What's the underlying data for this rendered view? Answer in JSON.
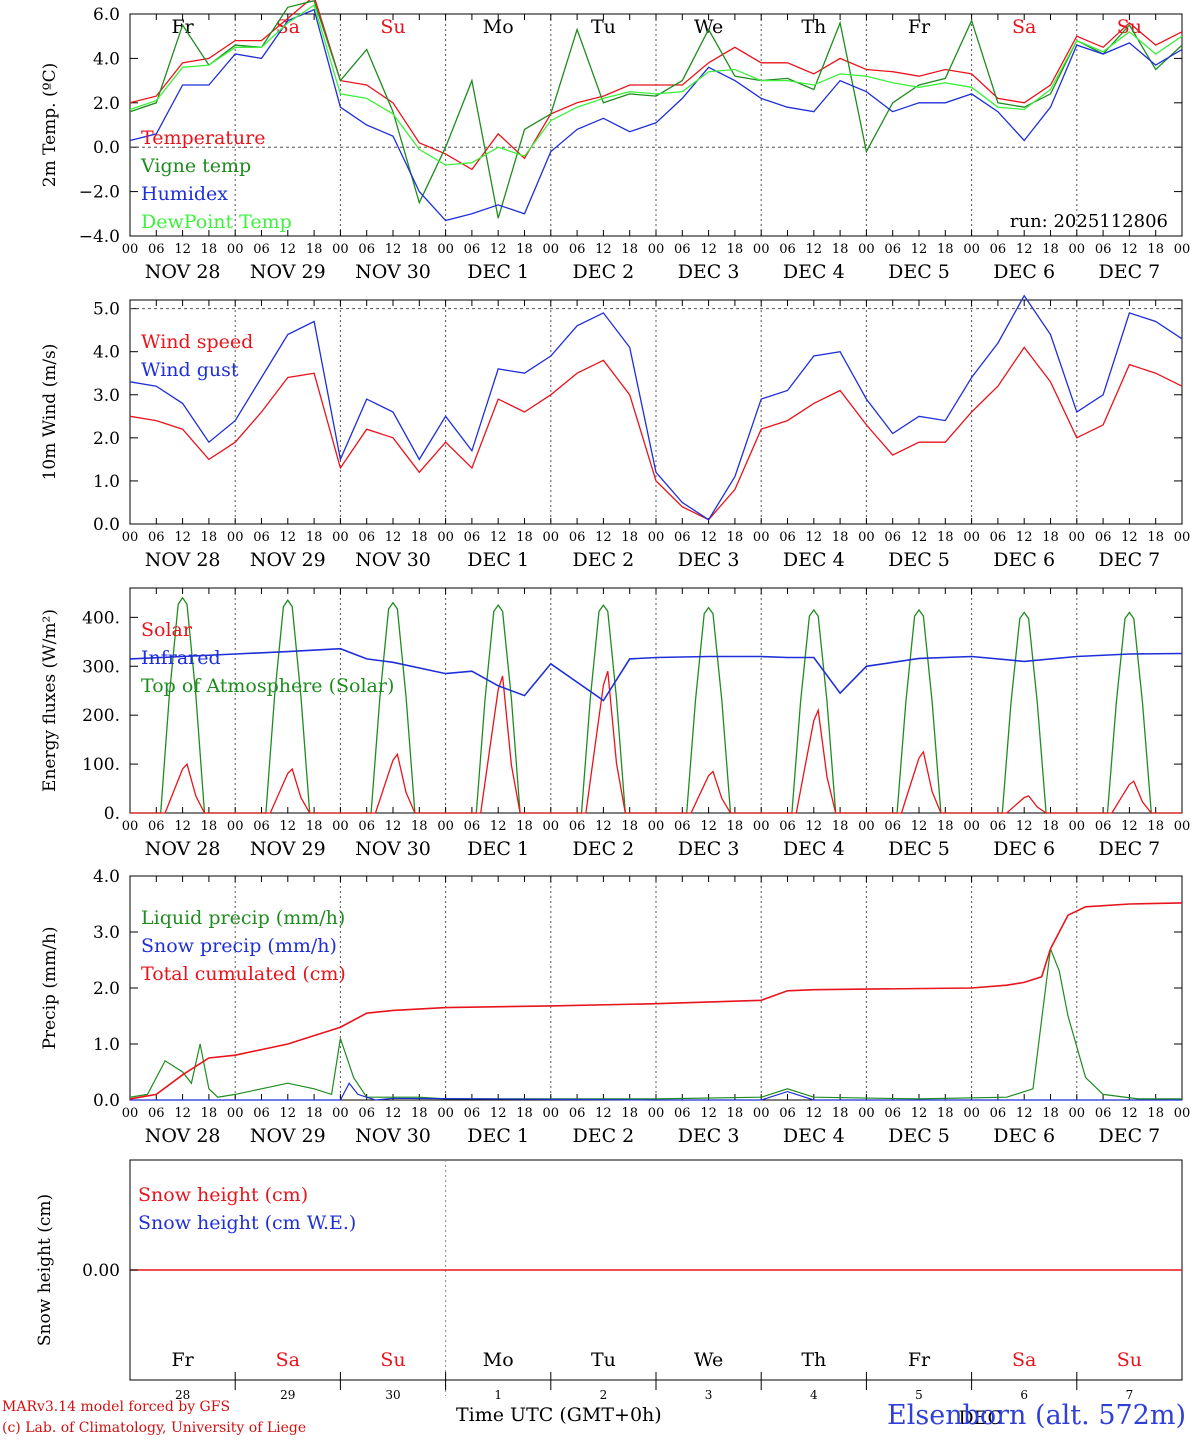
{
  "app": {
    "days": [
      "Fr",
      "Sa",
      "Su",
      "Mo",
      "Tu",
      "We",
      "Th",
      "Fr",
      "Sa",
      "Su"
    ],
    "weekend_flags": [
      false,
      true,
      true,
      false,
      false,
      false,
      false,
      false,
      true,
      true
    ],
    "date_labels": [
      "NOV 28",
      "NOV 29",
      "NOV 30",
      "DEC  1",
      "DEC  2",
      "DEC  3",
      "DEC  4",
      "DEC  5",
      "DEC  6",
      "DEC  7"
    ],
    "hour_ticks": [
      "00",
      "06",
      "12",
      "18"
    ],
    "day_numbers": [
      "28",
      "29",
      "30",
      "1",
      "2",
      "3",
      "4",
      "5",
      "6",
      "7"
    ],
    "dec_label": "DEC",
    "colors": {
      "red": "#e8141c",
      "green": "#1f8c1f",
      "blue": "#1f2fd8",
      "lightgreen": "#3df03d"
    }
  },
  "footer": {
    "model": "MARv3.14 model forced by GFS",
    "lab": "(c) Lab. of Climatology, University of Liege",
    "time_label": "Time UTC (GMT+0h)",
    "station": "Elsenborn (alt. 572m)"
  },
  "chart_data": [
    {
      "type": "line",
      "ylabel": "2m Temp. (ºC)",
      "ylim": [
        -4,
        6
      ],
      "yticks": [
        "6.0",
        "4.0",
        "2.0",
        "0.0",
        "−2.0",
        "−4.0"
      ],
      "annotation": "run: 2025112806",
      "x_unit": "hours since 2025-11-28 00 UTC",
      "x": [
        0,
        6,
        12,
        18,
        24,
        30,
        36,
        42,
        48,
        54,
        60,
        66,
        72,
        78,
        84,
        90,
        96,
        102,
        108,
        114,
        120,
        126,
        132,
        138,
        144,
        150,
        156,
        162,
        168,
        174,
        180,
        186,
        192,
        198,
        204,
        210,
        216,
        222,
        228,
        234,
        240
      ],
      "series": [
        {
          "name": "Temperature",
          "color": "red",
          "values": [
            2.0,
            2.3,
            3.8,
            4.0,
            4.8,
            4.8,
            5.8,
            6.8,
            3.0,
            2.8,
            2.0,
            0.2,
            -0.3,
            -1.0,
            0.6,
            -0.5,
            1.5,
            2.0,
            2.3,
            2.8,
            2.8,
            2.8,
            3.8,
            4.5,
            3.8,
            3.8,
            3.3,
            4.0,
            3.5,
            3.4,
            3.2,
            3.5,
            3.3,
            2.2,
            2.0,
            2.8,
            5.0,
            4.5,
            5.6,
            4.6,
            5.2
          ]
        },
        {
          "name": "Vigne temp",
          "color": "green",
          "values": [
            1.6,
            2.0,
            5.5,
            3.7,
            4.6,
            4.5,
            6.3,
            6.6,
            3.0,
            4.4,
            1.6,
            -2.5,
            0.0,
            3.0,
            -3.2,
            0.8,
            1.5,
            5.3,
            2.0,
            2.4,
            2.3,
            3.0,
            5.3,
            3.2,
            3.0,
            3.1,
            2.6,
            5.6,
            -0.2,
            2.0,
            2.8,
            3.1,
            5.7,
            2.0,
            1.8,
            2.4,
            4.8,
            4.2,
            5.5,
            3.5,
            4.6
          ]
        },
        {
          "name": "Humidex",
          "color": "blue",
          "values": [
            0.3,
            0.6,
            2.8,
            2.8,
            4.2,
            4.0,
            5.7,
            6.2,
            1.8,
            1.0,
            0.5,
            -2.0,
            -3.3,
            -3.0,
            -2.6,
            -3.0,
            -0.2,
            0.8,
            1.3,
            0.7,
            1.1,
            2.2,
            3.6,
            3.0,
            2.2,
            1.8,
            1.6,
            3.0,
            2.5,
            1.6,
            2.0,
            2.0,
            2.4,
            1.6,
            0.3,
            1.8,
            4.6,
            4.2,
            4.7,
            3.7,
            4.4
          ]
        },
        {
          "name": "DewPoint Temp",
          "color": "lightgreen",
          "values": [
            1.7,
            2.1,
            3.6,
            3.7,
            4.5,
            4.5,
            5.6,
            6.4,
            2.4,
            2.2,
            1.5,
            -0.1,
            -0.8,
            -0.7,
            0.0,
            -0.4,
            1.2,
            1.8,
            2.2,
            2.5,
            2.4,
            2.5,
            3.4,
            3.5,
            3.0,
            3.0,
            2.8,
            3.3,
            3.2,
            2.9,
            2.7,
            2.9,
            2.7,
            1.8,
            1.7,
            2.6,
            4.8,
            4.3,
            5.2,
            4.2,
            5.0
          ]
        }
      ]
    },
    {
      "type": "line",
      "ylabel": "10m Wind (m/s)",
      "ylim": [
        0,
        5.2
      ],
      "yticks": [
        "5.0",
        "4.0",
        "3.0",
        "2.0",
        "1.0",
        "0.0"
      ],
      "x_unit": "hours since 2025-11-28 00 UTC",
      "x": [
        0,
        6,
        12,
        18,
        24,
        30,
        36,
        42,
        48,
        54,
        60,
        66,
        72,
        78,
        84,
        90,
        96,
        102,
        108,
        114,
        120,
        126,
        132,
        138,
        144,
        150,
        156,
        162,
        168,
        174,
        180,
        186,
        192,
        198,
        204,
        210,
        216,
        222,
        228,
        234,
        240
      ],
      "series": [
        {
          "name": "Wind speed",
          "color": "red",
          "values": [
            2.5,
            2.4,
            2.2,
            1.5,
            1.9,
            2.6,
            3.4,
            3.5,
            1.3,
            2.2,
            2.0,
            1.2,
            1.9,
            1.3,
            2.9,
            2.6,
            3.0,
            3.5,
            3.8,
            3.0,
            1.0,
            0.4,
            0.1,
            0.8,
            2.2,
            2.4,
            2.8,
            3.1,
            2.3,
            1.6,
            1.9,
            1.9,
            2.6,
            3.2,
            4.1,
            3.3,
            2.0,
            2.3,
            3.7,
            3.5,
            3.2
          ]
        },
        {
          "name": "Wind gust",
          "color": "blue",
          "values": [
            3.3,
            3.2,
            2.8,
            1.9,
            2.4,
            3.4,
            4.4,
            4.7,
            1.5,
            2.9,
            2.6,
            1.5,
            2.5,
            1.7,
            3.6,
            3.5,
            3.9,
            4.6,
            4.9,
            4.1,
            1.2,
            0.5,
            0.1,
            1.1,
            2.9,
            3.1,
            3.9,
            4.0,
            2.9,
            2.1,
            2.5,
            2.4,
            3.4,
            4.2,
            5.3,
            4.4,
            2.6,
            3.0,
            4.9,
            4.7,
            4.3
          ]
        }
      ]
    },
    {
      "type": "line",
      "ylabel": "Energy fluxes (W/m²)",
      "ylim": [
        0,
        460
      ],
      "yticks": [
        "400.",
        "300.",
        "200.",
        "100.",
        "0."
      ],
      "series": [
        {
          "name": "Solar",
          "color": "red",
          "peaks": [
            100,
            90,
            120,
            280,
            290,
            85,
            210,
            125,
            35,
            65
          ]
        },
        {
          "name": "Infrared",
          "color": "blue",
          "x": [
            0,
            12,
            24,
            36,
            48,
            54,
            60,
            72,
            78,
            84,
            90,
            96,
            108,
            114,
            120,
            132,
            144,
            150,
            156,
            162,
            168,
            180,
            192,
            204,
            216,
            228,
            240
          ],
          "values": [
            315,
            320,
            325,
            330,
            336,
            315,
            308,
            285,
            290,
            260,
            240,
            305,
            230,
            315,
            318,
            320,
            320,
            318,
            318,
            245,
            300,
            316,
            320,
            310,
            320,
            325,
            326
          ]
        },
        {
          "name": "Top of Atmosphere (Solar)",
          "color": "green",
          "peaks": [
            440,
            435,
            430,
            425,
            425,
            420,
            415,
            415,
            410,
            410
          ]
        }
      ]
    },
    {
      "type": "line",
      "ylabel": "Precip (mm/h)",
      "ylim": [
        0,
        4
      ],
      "yticks": [
        "4.0",
        "3.0",
        "2.0",
        "1.0",
        "0.0"
      ],
      "x_unit": "hours since 2025-11-28 00 UTC",
      "series": [
        {
          "name": "Liquid precip (mm/h)",
          "color": "green",
          "x": [
            0,
            4,
            8,
            12,
            14,
            16,
            18,
            20,
            24,
            30,
            36,
            42,
            46,
            48,
            51,
            54,
            60,
            66,
            72,
            90,
            120,
            144,
            150,
            156,
            180,
            200,
            206,
            210,
            212,
            214,
            218,
            222,
            230,
            240
          ],
          "values": [
            0.05,
            0.1,
            0.7,
            0.5,
            0.3,
            1.0,
            0.2,
            0.05,
            0.1,
            0.2,
            0.3,
            0.2,
            0.1,
            1.1,
            0.4,
            0.05,
            0.05,
            0.05,
            0.02,
            0.02,
            0.02,
            0.05,
            0.2,
            0.05,
            0.02,
            0.05,
            0.2,
            2.7,
            2.3,
            1.5,
            0.4,
            0.1,
            0.02,
            0.02
          ]
        },
        {
          "name": "Snow precip (mm/h)",
          "color": "blue",
          "x": [
            0,
            40,
            48,
            50,
            52,
            56,
            60,
            80,
            120,
            144,
            150,
            156,
            200,
            240
          ],
          "values": [
            0.0,
            0.0,
            0.0,
            0.3,
            0.1,
            0.0,
            0.03,
            0.02,
            0.0,
            0.0,
            0.15,
            0.0,
            0.0,
            0.0
          ]
        },
        {
          "name": "Total cumulated (cm)",
          "color": "red",
          "x": [
            0,
            6,
            12,
            18,
            24,
            30,
            36,
            42,
            48,
            54,
            60,
            72,
            96,
            120,
            144,
            150,
            156,
            168,
            192,
            200,
            204,
            208,
            210,
            214,
            218,
            228,
            240
          ],
          "values": [
            0.02,
            0.1,
            0.45,
            0.75,
            0.8,
            0.9,
            1.0,
            1.15,
            1.3,
            1.55,
            1.6,
            1.65,
            1.68,
            1.72,
            1.78,
            1.95,
            1.97,
            1.98,
            2.0,
            2.05,
            2.1,
            2.2,
            2.7,
            3.3,
            3.45,
            3.5,
            3.52
          ]
        }
      ]
    },
    {
      "type": "line",
      "ylabel": "Snow height (cm)",
      "yticks": [
        "0.00"
      ],
      "series": [
        {
          "name": "Snow height (cm)",
          "color": "red",
          "values": [
            0,
            0
          ]
        },
        {
          "name": "Snow height (cm W.E.)",
          "color": "blue",
          "values": [
            0,
            0
          ]
        }
      ]
    }
  ]
}
